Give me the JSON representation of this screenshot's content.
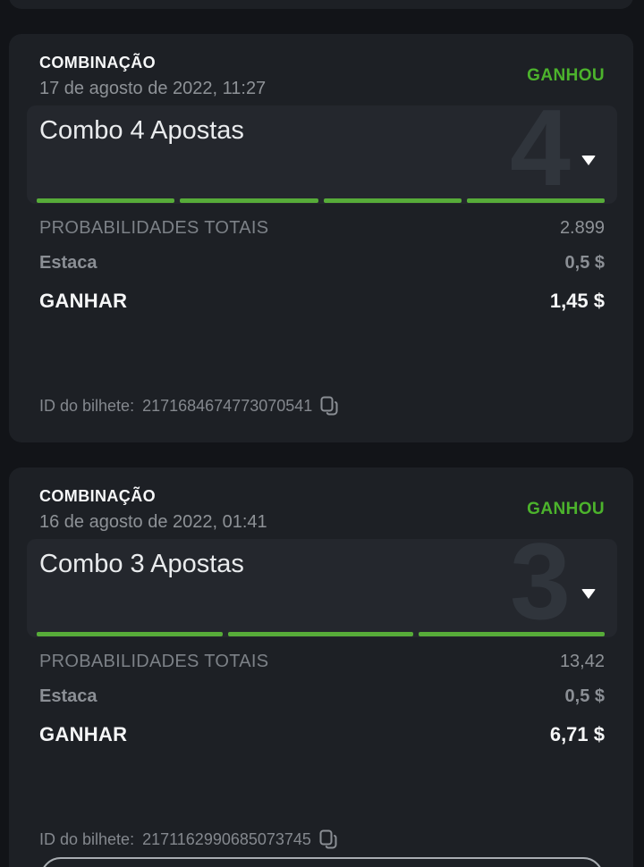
{
  "colors": {
    "won_green": "#4cb32c",
    "segment_green": "#57ac39",
    "card_bg": "#1d2025",
    "panel_bg": "#24272d",
    "page_bg": "#121418"
  },
  "cards": [
    {
      "type_label": "COMBINAÇÃO",
      "datetime": "17 de agosto de 2022, 11:27",
      "status": "GANHOU",
      "combo_title": "Combo 4 Apostas",
      "combo_count": "4",
      "legs": 4,
      "rows": {
        "odds_label": "PROBABILIDADES TOTAIS",
        "odds_value": "2.899",
        "stake_label": "Estaca",
        "stake_value": "0,5 $",
        "win_label": "GANHAR",
        "win_value": "1,45 $"
      },
      "ticket": {
        "label": "ID do bilhete:",
        "id": "2171684674773070541"
      },
      "icons": {
        "copy": "copy",
        "expand": "chevron-down"
      }
    },
    {
      "type_label": "COMBINAÇÃO",
      "datetime": "16 de agosto de 2022, 01:41",
      "status": "GANHOU",
      "combo_title": "Combo 3 Apostas",
      "combo_count": "3",
      "legs": 3,
      "rows": {
        "odds_label": "PROBABILIDADES TOTAIS",
        "odds_value": "13,42",
        "stake_label": "Estaca",
        "stake_value": "0,5 $",
        "win_label": "GANHAR",
        "win_value": "6,71 $"
      },
      "ticket": {
        "label": "ID do bilhete:",
        "id": "2171162990685073745"
      },
      "icons": {
        "copy": "copy",
        "expand": "chevron-down"
      }
    }
  ]
}
